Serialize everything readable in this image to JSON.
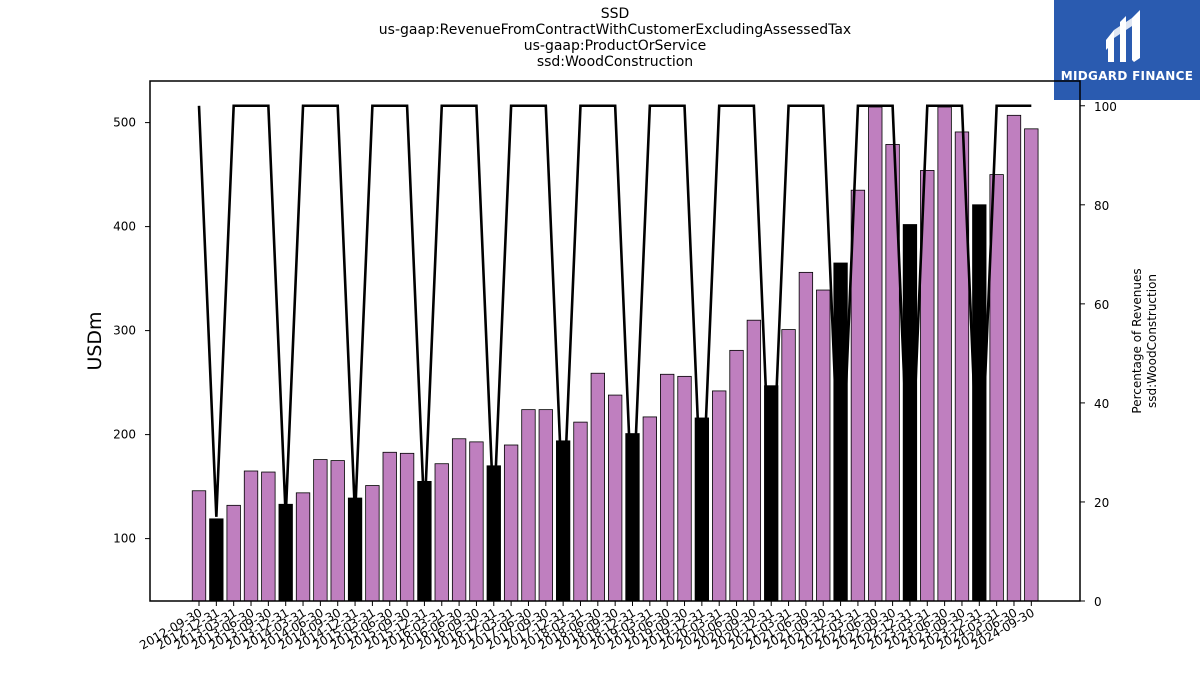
{
  "titles": {
    "line1": "SSD",
    "line2": "us-gaap:RevenueFromContractWithCustomerExcludingAssessedTax",
    "line3": "us-gaap:ProductOrService",
    "line4": "ssd:WoodConstruction"
  },
  "logo": {
    "brand": "MIDGARD FINANCE"
  },
  "colors": {
    "bar": "#bf7fbf",
    "bar_annual": "#000000",
    "line": "#000000",
    "logo_bg": "#2a5bb0"
  },
  "chart_data": {
    "type": "bar",
    "ylabel": "USDm",
    "y2label_line1": "Percentage of Revenues",
    "y2label_line2": "ssd:WoodConstruction",
    "ylim": [
      40,
      540
    ],
    "y2lim": [
      0,
      105
    ],
    "yticks": [
      100,
      200,
      300,
      400,
      500
    ],
    "y2ticks": [
      0,
      20,
      40,
      60,
      80,
      100
    ],
    "categories": [
      "2012-09-30",
      "2012-12-31",
      "2013-03-31",
      "2013-06-30",
      "2013-09-30",
      "2013-12-31",
      "2014-03-31",
      "2014-06-30",
      "2014-09-30",
      "2014-12-31",
      "2015-03-31",
      "2015-06-30",
      "2015-09-30",
      "2015-12-31",
      "2016-03-31",
      "2016-06-30",
      "2016-09-30",
      "2016-12-31",
      "2017-03-31",
      "2017-06-30",
      "2017-09-30",
      "2017-12-31",
      "2018-03-31",
      "2018-06-30",
      "2018-09-30",
      "2018-12-31",
      "2019-03-31",
      "2019-06-30",
      "2019-09-30",
      "2019-12-31",
      "2020-03-31",
      "2020-06-30",
      "2020-09-30",
      "2020-12-31",
      "2021-03-31",
      "2021-06-30",
      "2021-09-30",
      "2021-12-31",
      "2022-03-31",
      "2022-06-30",
      "2022-09-30",
      "2022-12-31",
      "2023-03-31",
      "2023-06-30",
      "2023-09-30",
      "2023-12-31",
      "2024-03-31",
      "2024-06-30",
      "2024-09-30"
    ],
    "xtick_labels": [
      "2012-09-30",
      "2012-12-31",
      "2013-03-31",
      "2013-06-30",
      "2013-09-30",
      "2013-12-31",
      "2014-03-31",
      "2014-06-30",
      "2014-09-30",
      "2014-12-31",
      "2015-03-31",
      "2015-06-30",
      "2015-09-30",
      "2015-12-31",
      "2016-03-31",
      "2016-06-30",
      "2016-09-30",
      "2016-12-31",
      "2017-03-31",
      "2017-06-30",
      "2017-09-30",
      "2017-12-31",
      "2018-03-31",
      "2018-06-30",
      "2018-09-30",
      "2018-12-31",
      "2019-03-31",
      "2019-06-30",
      "2019-09-30",
      "2019-12-31",
      "2020-03-31",
      "2020-06-30",
      "2020-09-30",
      "2020-12-31",
      "2021-03-31",
      "2021-06-30",
      "2021-09-30",
      "2021-12-31",
      "2022-03-31",
      "2022-06-30",
      "2022-09-30",
      "2022-12-31",
      "2023-03-31",
      "2023-06-30",
      "2023-09-30",
      "2023-12-31",
      "2024-03-31",
      "2024-06-30",
      "2024-09-30"
    ],
    "values": [
      146,
      119,
      132,
      165,
      164,
      133,
      144,
      176,
      175,
      139,
      151,
      183,
      182,
      155,
      172,
      196,
      193,
      170,
      190,
      224,
      224,
      194,
      212,
      259,
      238,
      201,
      217,
      258,
      256,
      216,
      242,
      281,
      310,
      247,
      301,
      356,
      339,
      365,
      435,
      515,
      479,
      402,
      454,
      515,
      491,
      421,
      450,
      507,
      494
    ],
    "annual_flags": [
      0,
      1,
      0,
      0,
      0,
      1,
      0,
      0,
      0,
      1,
      0,
      0,
      0,
      1,
      0,
      0,
      0,
      1,
      0,
      0,
      0,
      1,
      0,
      0,
      0,
      1,
      0,
      0,
      0,
      1,
      0,
      0,
      0,
      1,
      0,
      0,
      0,
      1,
      0,
      0,
      0,
      1,
      0,
      0,
      0,
      1,
      0,
      0,
      0
    ],
    "pct_series": [
      100,
      17,
      100,
      100,
      100,
      17,
      100,
      100,
      100,
      17,
      100,
      100,
      100,
      17,
      100,
      100,
      100,
      17,
      100,
      100,
      100,
      17,
      100,
      100,
      100,
      17,
      100,
      100,
      100,
      17,
      100,
      100,
      100,
      17,
      100,
      100,
      100,
      17,
      100,
      100,
      100,
      17,
      100,
      100,
      100,
      17,
      100,
      100,
      100
    ]
  }
}
